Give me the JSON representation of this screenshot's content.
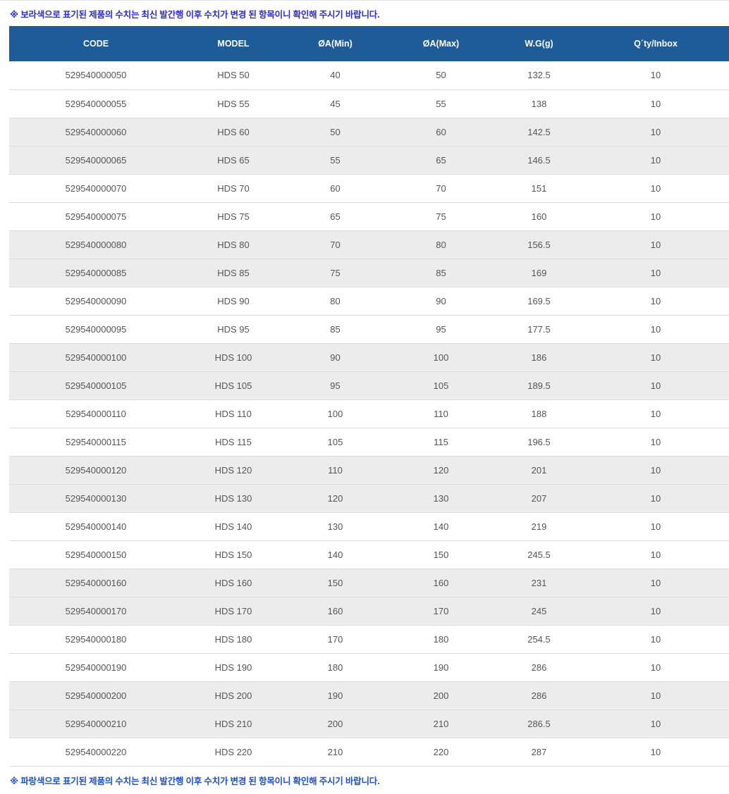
{
  "notes": {
    "top": "※ 보라색으로 표기된 제품의 수치는 최신 발간행 이후 수치가 변경 된 항목이니 확인해 주시기 바랍니다.",
    "bottom": "※ 파랑색으로 표기된 제품의 수치는 최신 발간행 이후 수치가 변경 된 항목이니 확인해 주시기 바랍니다."
  },
  "colors": {
    "header_bg": "#1e5b97",
    "stripe_bg": "#ececec",
    "row_border": "#dcdcdc",
    "note_top_color": "#2b2bd0",
    "note_bottom_color": "#1c50c8",
    "body_text": "#555555",
    "header_text": "#ffffff"
  },
  "table": {
    "columns": [
      "CODE",
      "MODEL",
      "ØA(Min)",
      "ØA(Max)",
      "W.G(g)",
      "Q´ty/Inbox"
    ],
    "rows": [
      [
        "529540000050",
        "HDS 50",
        "40",
        "50",
        "132.5",
        "10"
      ],
      [
        "529540000055",
        "HDS 55",
        "45",
        "55",
        "138",
        "10"
      ],
      [
        "529540000060",
        "HDS 60",
        "50",
        "60",
        "142.5",
        "10"
      ],
      [
        "529540000065",
        "HDS 65",
        "55",
        "65",
        "146.5",
        "10"
      ],
      [
        "529540000070",
        "HDS 70",
        "60",
        "70",
        "151",
        "10"
      ],
      [
        "529540000075",
        "HDS 75",
        "65",
        "75",
        "160",
        "10"
      ],
      [
        "529540000080",
        "HDS 80",
        "70",
        "80",
        "156.5",
        "10"
      ],
      [
        "529540000085",
        "HDS 85",
        "75",
        "85",
        "169",
        "10"
      ],
      [
        "529540000090",
        "HDS 90",
        "80",
        "90",
        "169.5",
        "10"
      ],
      [
        "529540000095",
        "HDS 95",
        "85",
        "95",
        "177.5",
        "10"
      ],
      [
        "529540000100",
        "HDS 100",
        "90",
        "100",
        "186",
        "10"
      ],
      [
        "529540000105",
        "HDS 105",
        "95",
        "105",
        "189.5",
        "10"
      ],
      [
        "529540000110",
        "HDS 110",
        "100",
        "110",
        "188",
        "10"
      ],
      [
        "529540000115",
        "HDS 115",
        "105",
        "115",
        "196.5",
        "10"
      ],
      [
        "529540000120",
        "HDS 120",
        "110",
        "120",
        "201",
        "10"
      ],
      [
        "529540000130",
        "HDS 130",
        "120",
        "130",
        "207",
        "10"
      ],
      [
        "529540000140",
        "HDS 140",
        "130",
        "140",
        "219",
        "10"
      ],
      [
        "529540000150",
        "HDS 150",
        "140",
        "150",
        "245.5",
        "10"
      ],
      [
        "529540000160",
        "HDS 160",
        "150",
        "160",
        "231",
        "10"
      ],
      [
        "529540000170",
        "HDS 170",
        "160",
        "170",
        "245",
        "10"
      ],
      [
        "529540000180",
        "HDS 180",
        "170",
        "180",
        "254.5",
        "10"
      ],
      [
        "529540000190",
        "HDS 190",
        "180",
        "190",
        "286",
        "10"
      ],
      [
        "529540000200",
        "HDS 200",
        "190",
        "200",
        "286",
        "10"
      ],
      [
        "529540000210",
        "HDS 210",
        "200",
        "210",
        "286.5",
        "10"
      ],
      [
        "529540000220",
        "HDS 220",
        "210",
        "220",
        "287",
        "10"
      ]
    ]
  }
}
